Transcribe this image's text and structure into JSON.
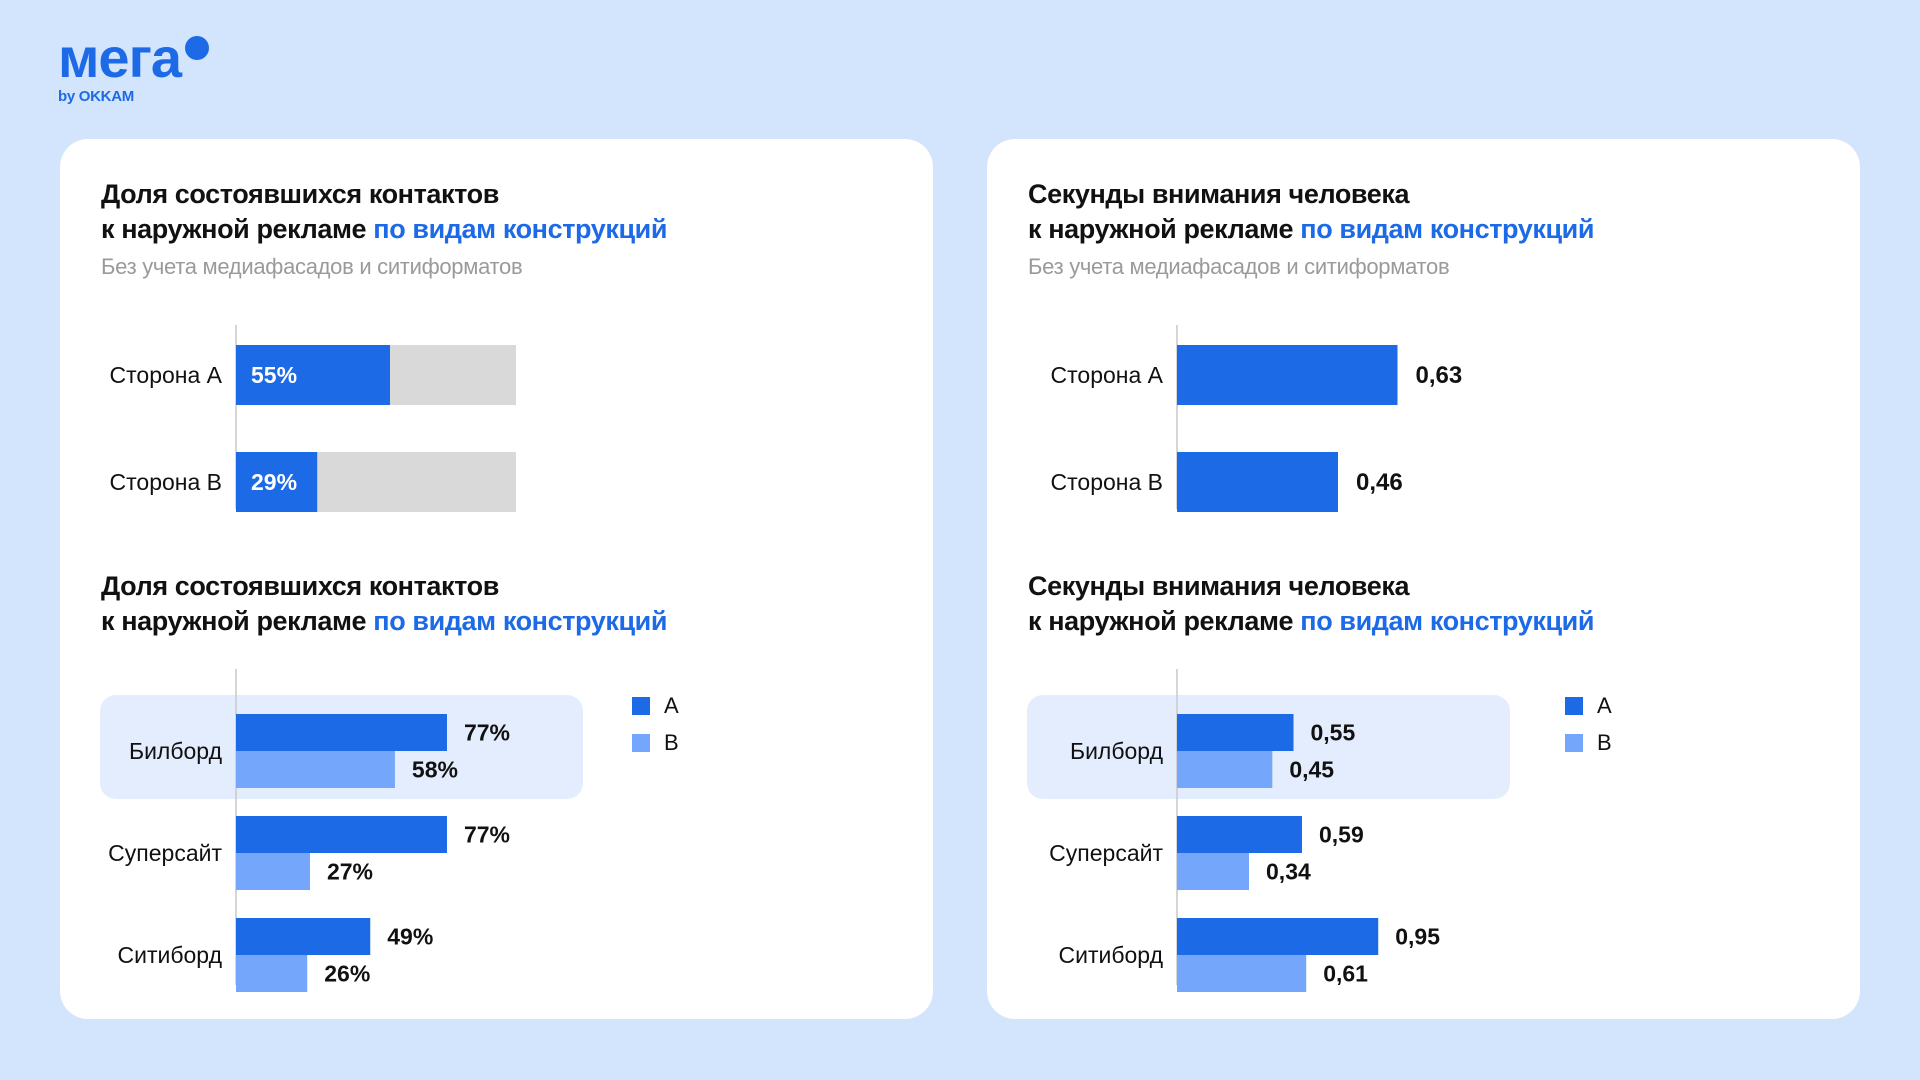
{
  "logo": {
    "word": "мега",
    "sub": "by OKKAM"
  },
  "colors": {
    "accent": "#1d6ae6",
    "series_a": "#1d6ae6",
    "series_b": "#74a7fb",
    "track": "#d9d9d9",
    "highlight": "#e3edfd"
  },
  "left_panel": {
    "top_title_line1": "Доля состоявшихся контактов",
    "top_title_line2_plain": "к наружной рекламе",
    "top_title_line2_accent": "по видам конструкций",
    "top_subtitle": "Без учета медиафасадов и ситиформатов",
    "bottom_title_line1": "Доля состоявшихся контактов",
    "bottom_title_line2_plain": "к наружной рекламе",
    "bottom_title_line2_accent": "по видам конструкций",
    "legend": {
      "a": "A",
      "b": "B"
    }
  },
  "right_panel": {
    "top_title_line1": "Секунды внимания человека",
    "top_title_line2_plain": "к наружной рекламе",
    "top_title_line2_accent": "по видам конструкций",
    "top_subtitle": "Без учета медиафасадов и ситиформатов",
    "bottom_title_line1": "Секунды внимания человека",
    "bottom_title_line2_plain": "к наружной рекламе",
    "bottom_title_line2_accent": "по видам конструкций",
    "legend": {
      "a": "A",
      "b": "B"
    }
  },
  "chart_data": [
    {
      "type": "bar",
      "orientation": "horizontal",
      "title": "Доля состоявшихся контактов к наружной рекламе по видам конструкций",
      "subtitle": "Без учета медиафасадов и ситиформатов",
      "categories": [
        "Сторона А",
        "Сторона В"
      ],
      "values": [
        55,
        29
      ],
      "labels": [
        "55%",
        "29%"
      ],
      "xlim": [
        0,
        100
      ],
      "style": "progress-track"
    },
    {
      "type": "bar",
      "orientation": "horizontal",
      "title": "Секунды внимания человека к наружной рекламе по видам конструкций",
      "subtitle": "Без учета медиафасадов и ситиформатов",
      "categories": [
        "Сторона А",
        "Сторона В"
      ],
      "values": [
        0.63,
        0.46
      ],
      "labels": [
        "0,63",
        "0,46"
      ],
      "xlim": [
        0,
        1
      ]
    },
    {
      "type": "bar",
      "orientation": "horizontal",
      "title": "Доля состоявшихся контактов к наружной рекламе по видам конструкций",
      "categories": [
        "Билборд",
        "Суперсайт",
        "Ситиборд"
      ],
      "series": [
        {
          "name": "A",
          "values": [
            77,
            77,
            49
          ],
          "labels": [
            "77%",
            "77%",
            "49%"
          ]
        },
        {
          "name": "B",
          "values": [
            58,
            27,
            26
          ],
          "labels": [
            "58%",
            "27%",
            "26%"
          ]
        }
      ],
      "highlighted_category": "Билборд",
      "legend": "right",
      "xlim": [
        0,
        100
      ]
    },
    {
      "type": "bar",
      "orientation": "horizontal",
      "title": "Секунды внимания человека к наружной рекламе по видам конструкций",
      "categories": [
        "Билборд",
        "Суперсайт",
        "Ситиборд"
      ],
      "series": [
        {
          "name": "A",
          "values": [
            0.55,
            0.59,
            0.95
          ],
          "labels": [
            "0,55",
            "0,59",
            "0,95"
          ]
        },
        {
          "name": "B",
          "values": [
            0.45,
            0.34,
            0.61
          ],
          "labels": [
            "0,45",
            "0,34",
            "0,61"
          ]
        }
      ],
      "highlighted_category": "Билборд",
      "legend": "right",
      "xlim": [
        0,
        1.1
      ]
    }
  ]
}
